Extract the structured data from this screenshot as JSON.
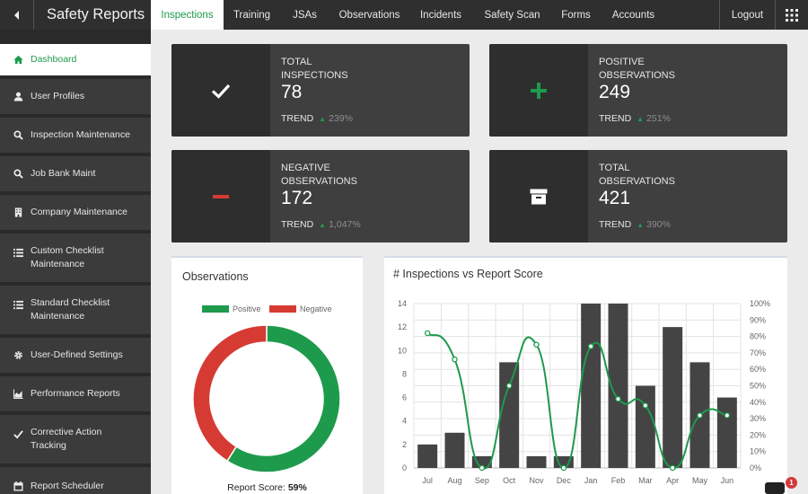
{
  "header": {
    "title": "Safety Reports",
    "tabs": [
      {
        "label": "Inspections",
        "active": true
      },
      {
        "label": "Training"
      },
      {
        "label": "JSAs"
      },
      {
        "label": "Observations"
      },
      {
        "label": "Incidents"
      },
      {
        "label": "Safety Scan"
      },
      {
        "label": "Forms"
      },
      {
        "label": "Accounts"
      }
    ],
    "logout_label": "Logout",
    "accent_color": "#1e9a4c"
  },
  "sidebar": {
    "items": [
      {
        "label": "Dashboard",
        "icon": "home-icon",
        "active": true
      },
      {
        "label": "User Profiles",
        "icon": "user-icon"
      },
      {
        "label": "Inspection Maintenance",
        "icon": "search-icon"
      },
      {
        "label": "Job Bank Maint",
        "icon": "search-icon"
      },
      {
        "label": "Company Maintenance",
        "icon": "building-icon"
      },
      {
        "label": "Custom Checklist Maintenance",
        "icon": "list-icon"
      },
      {
        "label": "Standard Checklist Maintenance",
        "icon": "list-icon"
      },
      {
        "label": "User-Defined Settings",
        "icon": "gear-icon"
      },
      {
        "label": "Performance Reports",
        "icon": "area-chart-icon"
      },
      {
        "label": "Corrective Action Tracking",
        "icon": "check-icon"
      },
      {
        "label": "Report Scheduler",
        "icon": "calendar-icon"
      }
    ]
  },
  "stats": {
    "total_inspections": {
      "label": "TOTAL INSPECTIONS",
      "value": "78",
      "trend_label": "TREND",
      "trend_value": "239%",
      "icon": "check-icon"
    },
    "positive_observations": {
      "label": "POSITIVE OBSERVATIONS",
      "value": "249",
      "trend_label": "TREND",
      "trend_value": "251%",
      "icon": "plus-icon"
    },
    "negative_observations": {
      "label": "NEGATIVE OBSERVATIONS",
      "value": "172",
      "trend_label": "TREND",
      "trend_value": "1,047%",
      "icon": "minus-icon"
    },
    "total_observations": {
      "label": "TOTAL OBSERVATIONS",
      "value": "421",
      "trend_label": "TREND",
      "trend_value": "390%",
      "icon": "archive-icon"
    }
  },
  "notification_count": "1",
  "chart_data": [
    {
      "type": "pie",
      "title": "Observations",
      "donut": true,
      "legend_position": "top",
      "series": [
        {
          "name": "Positive",
          "value": 59,
          "color": "#1e9a4c"
        },
        {
          "name": "Negative",
          "value": 41,
          "color": "#d63b33"
        }
      ],
      "footer_label": "Report Score:",
      "footer_value": "59%"
    },
    {
      "type": "bar",
      "title": "# Inspections vs Report Score",
      "categories": [
        "Jul",
        "Aug",
        "Sep",
        "Oct",
        "Nov",
        "Dec",
        "Jan",
        "Feb",
        "Mar",
        "Apr",
        "May",
        "Jun"
      ],
      "ylim": [
        0,
        14
      ],
      "y_ticks": [
        "0",
        "2",
        "4",
        "6",
        "8",
        "10",
        "12",
        "14"
      ],
      "y2lim": [
        0,
        100
      ],
      "y2_ticks": [
        "0%",
        "10%",
        "20%",
        "30%",
        "40%",
        "50%",
        "60%",
        "70%",
        "80%",
        "90%",
        "100%"
      ],
      "grid": true,
      "series": [
        {
          "kind": "bar",
          "values": [
            2,
            3,
            1,
            9,
            1,
            1,
            14,
            14,
            7,
            12,
            9,
            6
          ],
          "color": "#444444"
        },
        {
          "kind": "line",
          "axis": "right",
          "values": [
            82,
            66,
            0,
            50,
            75,
            0,
            74,
            42,
            38,
            0,
            32,
            32
          ],
          "color": "#1e9a4c"
        }
      ]
    }
  ]
}
